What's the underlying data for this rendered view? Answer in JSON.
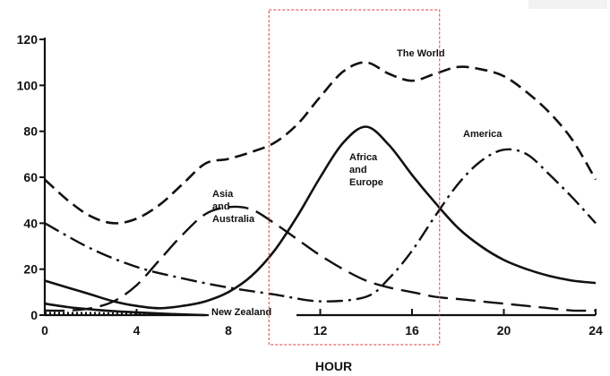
{
  "chart_data": {
    "type": "line",
    "title": "",
    "xlabel": "HOUR",
    "ylabel": "",
    "xlim": [
      0,
      24
    ],
    "ylim": [
      0,
      120
    ],
    "x_ticks": [
      0,
      4,
      8,
      12,
      16,
      20,
      24
    ],
    "y_ticks": [
      0,
      20,
      40,
      60,
      80,
      100,
      120
    ],
    "grid": false,
    "legend": "none",
    "annotations": [
      {
        "text": "The World",
        "series": "world"
      },
      {
        "text": "America",
        "series": "america"
      },
      {
        "text": "Africa\nand\nEurope",
        "series": "africa_europe"
      },
      {
        "text": "Asia\nand\nAustralia",
        "series": "asia_australia"
      },
      {
        "text": "New Zealand",
        "series": "new_zealand"
      }
    ],
    "highlight_x_range": [
      10,
      17.2
    ],
    "series": [
      {
        "id": "world",
        "style": "dashed",
        "x": [
          0,
          1,
          2,
          3,
          4,
          5,
          6,
          7,
          8,
          9,
          10,
          11,
          12,
          13,
          14,
          15,
          16,
          17,
          18,
          19,
          20,
          21,
          22,
          23,
          24
        ],
        "y": [
          59,
          50,
          43,
          40,
          42,
          48,
          57,
          66,
          68,
          71,
          75,
          83,
          95,
          106,
          110,
          105,
          102,
          105,
          108,
          107,
          104,
          97,
          88,
          76,
          59
        ]
      },
      {
        "id": "america",
        "style": "dash-dot",
        "x": [
          0,
          2,
          4,
          6,
          8,
          10,
          12,
          14,
          15,
          16,
          17,
          18,
          19,
          20,
          21,
          22,
          23,
          24
        ],
        "y": [
          40,
          29,
          21,
          16,
          12,
          9,
          6,
          8,
          16,
          28,
          43,
          57,
          67,
          72,
          70,
          61,
          51,
          40
        ]
      },
      {
        "id": "africa_europe",
        "style": "solid",
        "x": [
          0,
          1,
          2,
          3,
          4,
          5,
          6,
          7,
          8,
          9,
          10,
          11,
          12,
          13,
          14,
          15,
          16,
          17,
          18,
          19,
          20,
          21,
          22,
          23,
          24
        ],
        "y": [
          15,
          12,
          9,
          6,
          4,
          3,
          4,
          6,
          10,
          17,
          28,
          43,
          60,
          75,
          82,
          74,
          61,
          49,
          38,
          30,
          24,
          20,
          17,
          15,
          14
        ]
      },
      {
        "id": "asia_australia",
        "style": "long-dash",
        "x": [
          0,
          1,
          2,
          3,
          4,
          5,
          6,
          7,
          8,
          9,
          10,
          11,
          12,
          13,
          14,
          15,
          16,
          17,
          18,
          19,
          20,
          21,
          22,
          23,
          24
        ],
        "y": [
          2,
          2,
          3,
          6,
          13,
          24,
          35,
          44,
          47,
          46,
          40,
          33,
          26,
          20,
          15,
          12,
          10,
          8,
          7,
          6,
          5,
          4,
          3,
          2,
          2
        ]
      },
      {
        "id": "new_zealand",
        "style": "solid",
        "x": [
          0,
          1,
          2,
          3,
          4,
          5,
          6,
          7
        ],
        "y": [
          5,
          3.5,
          2.5,
          1.7,
          1.2,
          0.7,
          0.3,
          0
        ]
      },
      {
        "id": "new_zealand_dotted",
        "style": "dotted",
        "x": [
          0,
          1,
          2,
          3,
          4,
          5,
          6
        ],
        "y": [
          0.8,
          0.8,
          0.8,
          0.6,
          0.5,
          0.3,
          0.2
        ]
      }
    ]
  }
}
